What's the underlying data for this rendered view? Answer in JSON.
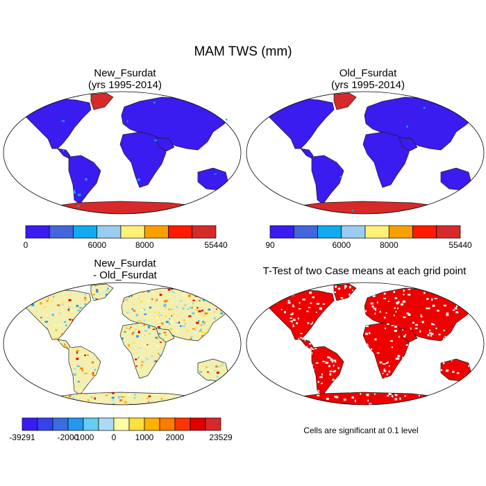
{
  "title": "MAM TWS (mm)",
  "panels": [
    {
      "title_line1": "New_Fsurdat",
      "title_line2": "(yrs 1995-2014)",
      "fill": "blue-land-red-ice"
    },
    {
      "title_line1": "Old_Fsurdat",
      "title_line2": "(yrs 1995-2014)",
      "fill": "blue-land-red-ice"
    },
    {
      "title_line1": "New_Fsurdat",
      "title_line2": "- Old_Fsurdat",
      "fill": "difference-mottled"
    },
    {
      "title_line1": "T-Test of two Case means at each grid point",
      "title_line2": "",
      "fill": "significance-red"
    }
  ],
  "colorbars": {
    "new": {
      "colors": [
        "#3a1cf0",
        "#4466dd",
        "#11aaee",
        "#99ccee",
        "#fff07a",
        "#f9a000",
        "#ff1a00",
        "#d62a2a"
      ],
      "labels": [
        "0",
        "6000",
        "8000",
        "55440"
      ],
      "label_edges": [
        0,
        3,
        5,
        8
      ]
    },
    "old": {
      "colors": [
        "#3a1cf0",
        "#4466dd",
        "#11aaee",
        "#99ccee",
        "#fff07a",
        "#f9a000",
        "#ff1a00",
        "#d62a2a"
      ],
      "labels": [
        "90",
        "6000",
        "8000",
        "55440"
      ],
      "label_edges": [
        0,
        3,
        5,
        8
      ]
    },
    "diff": {
      "colors": [
        "#3a1cf0",
        "#3344ee",
        "#3a6ee0",
        "#2299ee",
        "#66ccf0",
        "#aaddf2",
        "#ffffaa",
        "#ffe040",
        "#ffb000",
        "#ff7a00",
        "#ff3300",
        "#e00000",
        "#d62a2a"
      ],
      "labels": [
        "-39291",
        "-2000",
        "-1000",
        "0",
        "1000",
        "2000",
        "23529"
      ],
      "label_edges": [
        0,
        3,
        4,
        6,
        8,
        10,
        13
      ]
    }
  },
  "significance_note": "Cells are significant at 0.1 level",
  "colors": {
    "land": "#3a1cf0",
    "ice": "#d62a2a",
    "diff_land": "#f3efb0",
    "sig": "#ee0000"
  }
}
